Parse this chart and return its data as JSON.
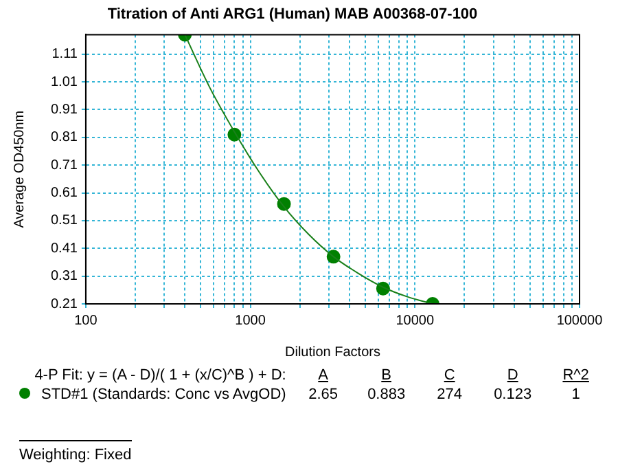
{
  "chart_data": {
    "type": "scatter",
    "title": "Titration of Anti ARG1 (Human) MAB A00368-07-100",
    "xlabel": "Dilution Factors",
    "ylabel": "Average OD450nm",
    "log": "x",
    "grid": true,
    "legend": "bottom",
    "marker": "circle",
    "xlim": [
      100,
      100000
    ],
    "xticks": [
      100,
      {
        "value": 200,
        "label": null
      },
      {
        "value": 300,
        "label": null
      },
      {
        "value": 400,
        "label": null
      },
      {
        "value": 500,
        "label": null
      },
      {
        "value": 600,
        "label": null
      },
      {
        "value": 700,
        "label": null
      },
      {
        "value": 800,
        "label": null
      },
      {
        "value": 900,
        "label": null
      },
      1000,
      {
        "value": 2000,
        "label": null
      },
      {
        "value": 3000,
        "label": null
      },
      {
        "value": 4000,
        "label": null
      },
      {
        "value": 5000,
        "label": null
      },
      {
        "value": 6000,
        "label": null
      },
      {
        "value": 7000,
        "label": null
      },
      {
        "value": 8000,
        "label": null
      },
      {
        "value": 9000,
        "label": null
      },
      10000,
      {
        "value": 20000,
        "label": null
      },
      {
        "value": 30000,
        "label": null
      },
      {
        "value": 40000,
        "label": null
      },
      {
        "value": 50000,
        "label": null
      },
      {
        "value": 60000,
        "label": null
      },
      {
        "value": 70000,
        "label": null
      },
      {
        "value": 80000,
        "label": null
      },
      {
        "value": 90000,
        "label": null
      },
      100000
    ],
    "ylim": [
      0.21,
      1.18
    ],
    "yticks": [
      0.21,
      0.31,
      0.41,
      0.51,
      0.61,
      0.71,
      0.81,
      0.91,
      1.01,
      1.11
    ],
    "series": [
      {
        "type": "line",
        "marker": "none",
        "color": "#1a801a",
        "x": [
          400,
          566,
          800,
          1131,
          1600,
          2263,
          3200,
          4525,
          6400,
          9051,
          12800
        ],
        "values": [
          1.18,
          0.99,
          0.83,
          0.685,
          0.56,
          0.46,
          0.38,
          0.32,
          0.27,
          0.235,
          0.21
        ]
      },
      {
        "type": "scatter",
        "name": "STD#1 (Standards: Conc vs AvgOD)",
        "color": "#008000",
        "x": [
          400,
          800,
          1600,
          3200,
          6400,
          12800
        ],
        "values": [
          1.18,
          0.82,
          0.57,
          0.38,
          0.265,
          0.21
        ]
      }
    ],
    "annotations": [
      "4-P Fit: y = (A - D)/( 1 + (x/C)^B ) + D:",
      "A",
      "B",
      "C",
      "D",
      "R^2",
      "2.65",
      "0.883",
      "274",
      "0.123",
      "1",
      "Weighting: Fixed"
    ]
  }
}
